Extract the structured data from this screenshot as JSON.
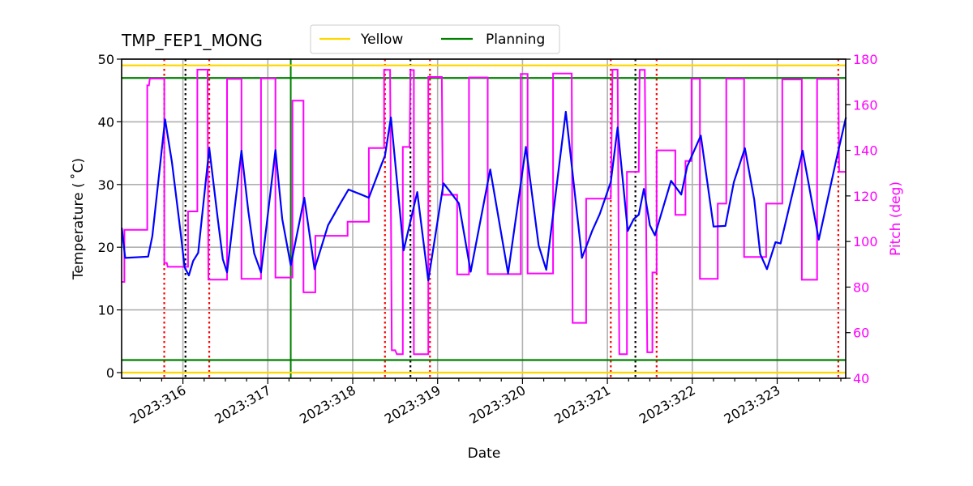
{
  "chart_data": {
    "type": "line",
    "title": "TMP_FEP1_MONG",
    "xlabel": "Date",
    "ylabel": "Temperature ($^\\circ$C)",
    "ylabel_display": "Temperature ( ˚C)",
    "y2label": "Pitch (deg)",
    "xlim": [
      315.28,
      323.81
    ],
    "ylim": [
      -0.9,
      50
    ],
    "y2lim": [
      40,
      180
    ],
    "grid": true,
    "legend_position": "upper center (above axes)",
    "x_ticks": [
      {
        "value": 316,
        "label": "2023:316"
      },
      {
        "value": 317,
        "label": "2023:317"
      },
      {
        "value": 318,
        "label": "2023:318"
      },
      {
        "value": 319,
        "label": "2023:319"
      },
      {
        "value": 320,
        "label": "2023:320"
      },
      {
        "value": 321,
        "label": "2023:321"
      },
      {
        "value": 322,
        "label": "2023:322"
      },
      {
        "value": 323,
        "label": "2023:323"
      }
    ],
    "y_ticks": [
      0,
      10,
      20,
      30,
      40,
      50
    ],
    "y2_ticks": [
      40,
      60,
      80,
      100,
      120,
      140,
      160,
      180
    ],
    "legend": [
      {
        "label": "Yellow",
        "color": "#ffd700"
      },
      {
        "label": "Planning",
        "color": "#008000"
      }
    ],
    "limits": {
      "yellow": [
        0,
        49
      ],
      "planning": [
        2,
        47
      ]
    },
    "vlines": {
      "red_dotted": [
        315.78,
        316.31,
        318.38,
        318.91,
        321.04,
        321.58,
        323.72
      ],
      "black_dotted": [
        316.03,
        318.68,
        321.33
      ],
      "green_solid": [
        317.27
      ]
    },
    "series": [
      {
        "name": "TMP_FEP1_MONG",
        "axis": "left",
        "color": "#0000ff",
        "points": [
          [
            315.28,
            23.1
          ],
          [
            315.32,
            18.3
          ],
          [
            315.59,
            18.5
          ],
          [
            315.64,
            21.8
          ],
          [
            315.79,
            40.4
          ],
          [
            315.87,
            33.6
          ],
          [
            315.97,
            22.6
          ],
          [
            316.02,
            16.8
          ],
          [
            316.07,
            15.5
          ],
          [
            316.12,
            17.8
          ],
          [
            316.18,
            19.1
          ],
          [
            316.31,
            35.8
          ],
          [
            316.41,
            24.6
          ],
          [
            316.47,
            18.1
          ],
          [
            316.52,
            16.0
          ],
          [
            316.69,
            35.4
          ],
          [
            316.77,
            25.8
          ],
          [
            316.84,
            19.0
          ],
          [
            316.92,
            16.0
          ],
          [
            317.09,
            35.5
          ],
          [
            317.17,
            24.5
          ],
          [
            317.27,
            17.1
          ],
          [
            317.43,
            27.9
          ],
          [
            317.55,
            16.5
          ],
          [
            317.71,
            23.5
          ],
          [
            317.86,
            27.1
          ],
          [
            317.95,
            29.2
          ],
          [
            318.1,
            28.4
          ],
          [
            318.19,
            27.9
          ],
          [
            318.33,
            32.9
          ],
          [
            318.38,
            34.6
          ],
          [
            318.45,
            40.7
          ],
          [
            318.6,
            19.5
          ],
          [
            318.76,
            28.8
          ],
          [
            318.81,
            23.4
          ],
          [
            318.89,
            14.7
          ],
          [
            319.07,
            30.2
          ],
          [
            319.15,
            28.8
          ],
          [
            319.25,
            27.0
          ],
          [
            319.39,
            16.1
          ],
          [
            319.62,
            32.4
          ],
          [
            319.71,
            25.3
          ],
          [
            319.83,
            15.8
          ],
          [
            320.04,
            36.0
          ],
          [
            320.19,
            20.3
          ],
          [
            320.28,
            16.4
          ],
          [
            320.51,
            41.6
          ],
          [
            320.7,
            18.3
          ],
          [
            320.82,
            22.6
          ],
          [
            320.91,
            25.3
          ],
          [
            321.04,
            30.4
          ],
          [
            321.12,
            39.1
          ],
          [
            321.24,
            22.6
          ],
          [
            321.31,
            24.5
          ],
          [
            321.37,
            25.2
          ],
          [
            321.43,
            29.3
          ],
          [
            321.5,
            23.5
          ],
          [
            321.56,
            21.9
          ],
          [
            321.75,
            30.6
          ],
          [
            321.87,
            28.4
          ],
          [
            321.94,
            32.9
          ],
          [
            322.1,
            37.8
          ],
          [
            322.25,
            23.3
          ],
          [
            322.39,
            23.4
          ],
          [
            322.49,
            30.4
          ],
          [
            322.62,
            35.8
          ],
          [
            322.73,
            27.6
          ],
          [
            322.8,
            18.9
          ],
          [
            322.88,
            16.5
          ],
          [
            322.98,
            20.8
          ],
          [
            323.04,
            20.6
          ],
          [
            323.3,
            35.4
          ],
          [
            323.49,
            21.2
          ],
          [
            323.7,
            34.2
          ],
          [
            323.81,
            40.7
          ]
        ]
      },
      {
        "name": "Pitch",
        "axis": "right",
        "color": "#ff00ff",
        "points": [
          [
            315.28,
            82.3
          ],
          [
            315.31,
            82.3
          ],
          [
            315.31,
            105.1
          ],
          [
            315.58,
            105.1
          ],
          [
            315.58,
            168.5
          ],
          [
            315.6,
            168.5
          ],
          [
            315.61,
            171.5
          ],
          [
            315.78,
            171.5
          ],
          [
            315.78,
            90.6
          ],
          [
            315.81,
            90.6
          ],
          [
            315.82,
            88.9
          ],
          [
            316.06,
            88.9
          ],
          [
            316.06,
            113.2
          ],
          [
            316.17,
            113.2
          ],
          [
            316.17,
            175.4
          ],
          [
            316.29,
            175.4
          ],
          [
            316.3,
            83.3
          ],
          [
            316.52,
            83.3
          ],
          [
            316.52,
            171.3
          ],
          [
            316.69,
            171.3
          ],
          [
            316.69,
            83.6
          ],
          [
            316.92,
            83.6
          ],
          [
            316.92,
            171.6
          ],
          [
            317.09,
            171.6
          ],
          [
            317.09,
            84.2
          ],
          [
            317.29,
            84.2
          ],
          [
            317.29,
            161.8
          ],
          [
            317.42,
            161.8
          ],
          [
            317.42,
            77.7
          ],
          [
            317.56,
            77.7
          ],
          [
            317.56,
            102.5
          ],
          [
            317.94,
            102.5
          ],
          [
            317.94,
            108.7
          ],
          [
            318.19,
            108.7
          ],
          [
            318.19,
            141.0
          ],
          [
            318.37,
            141.0
          ],
          [
            318.37,
            175.3
          ],
          [
            318.44,
            175.3
          ],
          [
            318.46,
            52.3
          ],
          [
            318.5,
            52.3
          ],
          [
            318.52,
            50.6
          ],
          [
            318.59,
            50.6
          ],
          [
            318.59,
            141.5
          ],
          [
            318.67,
            141.5
          ],
          [
            318.68,
            175.2
          ],
          [
            318.72,
            175.2
          ],
          [
            318.72,
            50.6
          ],
          [
            318.89,
            50.6
          ],
          [
            318.89,
            172.2
          ],
          [
            319.05,
            172.2
          ],
          [
            319.06,
            120.5
          ],
          [
            319.23,
            120.5
          ],
          [
            319.23,
            85.6
          ],
          [
            319.37,
            85.6
          ],
          [
            319.37,
            172.0
          ],
          [
            319.59,
            172.0
          ],
          [
            319.59,
            85.7
          ],
          [
            319.98,
            85.7
          ],
          [
            319.98,
            173.5
          ],
          [
            320.06,
            173.5
          ],
          [
            320.06,
            86.0
          ],
          [
            320.36,
            86.0
          ],
          [
            320.36,
            173.7
          ],
          [
            320.58,
            173.7
          ],
          [
            320.59,
            64.3
          ],
          [
            320.75,
            64.3
          ],
          [
            320.75,
            118.8
          ],
          [
            321.04,
            118.8
          ],
          [
            321.06,
            175.4
          ],
          [
            321.12,
            175.4
          ],
          [
            321.14,
            50.6
          ],
          [
            321.23,
            50.6
          ],
          [
            321.23,
            130.6
          ],
          [
            321.37,
            130.6
          ],
          [
            321.38,
            175.3
          ],
          [
            321.44,
            175.3
          ],
          [
            321.47,
            51.4
          ],
          [
            321.53,
            51.4
          ],
          [
            321.53,
            86.4
          ],
          [
            321.58,
            86.4
          ],
          [
            321.58,
            140.0
          ],
          [
            321.8,
            140.0
          ],
          [
            321.8,
            111.7
          ],
          [
            321.92,
            111.7
          ],
          [
            321.92,
            135.3
          ],
          [
            321.99,
            135.3
          ],
          [
            321.99,
            171.4
          ],
          [
            322.09,
            171.4
          ],
          [
            322.09,
            83.6
          ],
          [
            322.3,
            83.6
          ],
          [
            322.3,
            116.6
          ],
          [
            322.4,
            116.6
          ],
          [
            322.4,
            171.4
          ],
          [
            322.61,
            171.4
          ],
          [
            322.61,
            93.2
          ],
          [
            322.87,
            93.2
          ],
          [
            322.87,
            116.6
          ],
          [
            323.06,
            116.6
          ],
          [
            323.06,
            171.1
          ],
          [
            323.29,
            171.1
          ],
          [
            323.29,
            83.2
          ],
          [
            323.47,
            83.2
          ],
          [
            323.47,
            171.3
          ],
          [
            323.72,
            171.3
          ],
          [
            323.73,
            130.6
          ],
          [
            323.81,
            130.6
          ]
        ]
      }
    ]
  }
}
